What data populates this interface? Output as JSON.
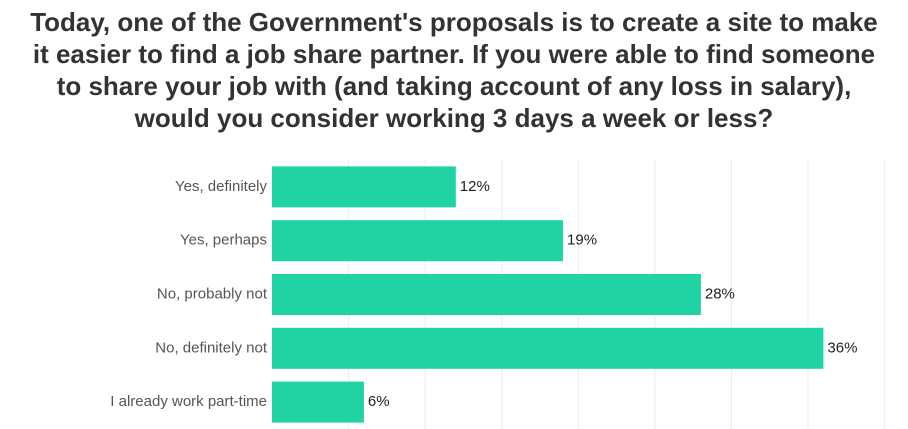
{
  "chart_data": {
    "type": "bar",
    "orientation": "horizontal",
    "title_lines": [
      "Today, one of the Government's proposals is to create a site to make",
      "it easier to find a job share partner. If you were able to find someone",
      "to share your job with (and taking account of any loss in salary),",
      "would you consider working 3 days a week or less?"
    ],
    "categories": [
      "Yes, definitely",
      "Yes, perhaps",
      "No, probably not",
      "No, definitely not",
      "I already work part-time"
    ],
    "values": [
      12,
      19,
      28,
      36,
      6
    ],
    "value_labels": [
      "12%",
      "19%",
      "28%",
      "36%",
      "6%"
    ],
    "xlim": [
      0,
      41
    ],
    "grid": true,
    "bar_color": "#20d3a4",
    "grid_color": "#ececec"
  }
}
